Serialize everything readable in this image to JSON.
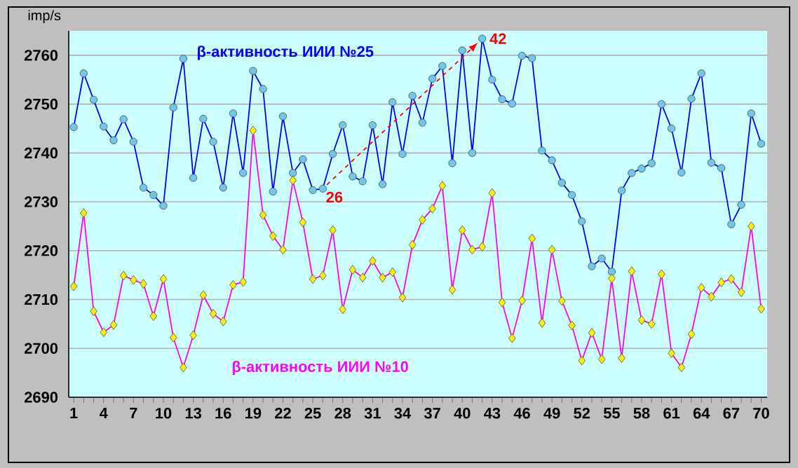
{
  "chart_data": {
    "type": "line",
    "ylabel": "imp/s",
    "x": [
      1,
      2,
      3,
      4,
      5,
      6,
      7,
      8,
      9,
      10,
      11,
      12,
      13,
      14,
      15,
      16,
      17,
      18,
      19,
      20,
      21,
      22,
      23,
      24,
      25,
      26,
      27,
      28,
      29,
      30,
      31,
      32,
      33,
      34,
      35,
      36,
      37,
      38,
      39,
      40,
      41,
      42,
      43,
      44,
      45,
      46,
      47,
      48,
      49,
      50,
      51,
      52,
      53,
      54,
      55,
      56,
      57,
      58,
      59,
      60,
      61,
      62,
      63,
      64,
      65,
      66,
      67,
      68,
      69,
      70
    ],
    "series": [
      {
        "name": "β-активность ИИИ №25",
        "color": "#0000ff",
        "marker": "circle",
        "values": [
          2745.3,
          2756.3,
          2750.9,
          2745.4,
          2742.6,
          2746.9,
          2742.3,
          2732.9,
          2731.4,
          2729.2,
          2749.3,
          2759.3,
          2734.9,
          2747.0,
          2742.3,
          2732.9,
          2748.1,
          2735.9,
          2756.8,
          2753.1,
          2732.1,
          2747.5,
          2735.9,
          2738.7,
          2732.4,
          2732.7,
          2739.8,
          2745.7,
          2735.2,
          2734.2,
          2745.7,
          2733.6,
          2750.4,
          2739.8,
          2751.7,
          2746.2,
          2755.2,
          2757.8,
          2737.9,
          2761.0,
          2740.0,
          2763.4,
          2755.0,
          2751.0,
          2750.1,
          2759.9,
          2759.4,
          2740.5,
          2738.5,
          2733.9,
          2731.4,
          2726.0,
          2716.8,
          2718.4,
          2715.7,
          2732.3,
          2735.9,
          2736.8,
          2737.9,
          2750.0,
          2745.0,
          2736.0,
          2751.1,
          2756.3,
          2738.0,
          2736.9,
          2725.4,
          2729.4,
          2748.1,
          2741.9
        ]
      },
      {
        "name": "β-активность ИИИ №10",
        "color": "#ff00ff",
        "marker": "diamond",
        "values": [
          2712.7,
          2727.7,
          2707.6,
          2703.3,
          2704.8,
          2714.9,
          2714.0,
          2713.2,
          2706.6,
          2714.2,
          2702.2,
          2696.1,
          2702.7,
          2710.9,
          2707.1,
          2705.5,
          2713.0,
          2713.6,
          2744.6,
          2727.3,
          2723.0,
          2720.2,
          2734.4,
          2725.8,
          2714.2,
          2714.9,
          2724.2,
          2708.0,
          2716.1,
          2714.5,
          2717.9,
          2714.5,
          2715.6,
          2710.4,
          2721.2,
          2726.3,
          2728.6,
          2733.3,
          2712.0,
          2724.2,
          2720.2,
          2720.8,
          2731.8,
          2709.4,
          2702.1,
          2709.8,
          2722.5,
          2705.2,
          2720.2,
          2709.7,
          2704.7,
          2697.5,
          2703.2,
          2697.8,
          2714.3,
          2698.0,
          2715.8,
          2705.8,
          2705.0,
          2715.2,
          2699.0,
          2696.1,
          2702.9,
          2712.4,
          2710.6,
          2713.5,
          2714.2,
          2711.5,
          2725.0,
          2708.1
        ]
      }
    ],
    "annotations": [
      {
        "text": "26",
        "x": 26,
        "y": 2732.7
      },
      {
        "text": "42",
        "x": 42,
        "y": 2763.4
      }
    ],
    "xlim": [
      0.5,
      70.6
    ],
    "ylim": [
      2690,
      2765
    ],
    "xticks": [
      1,
      4,
      7,
      10,
      13,
      16,
      19,
      22,
      25,
      28,
      31,
      34,
      37,
      40,
      43,
      46,
      49,
      52,
      55,
      58,
      61,
      64,
      67,
      70
    ],
    "yticks": [
      2690,
      2700,
      2710,
      2720,
      2730,
      2740,
      2750,
      2760
    ],
    "grid": "y"
  }
}
